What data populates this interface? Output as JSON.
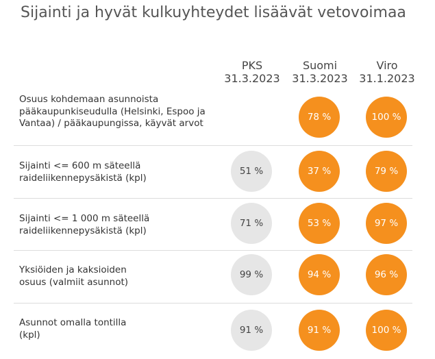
{
  "title": "Sijainti ja hyvät kulkuyhteydet lisäävät vetovoimaa",
  "columns": [
    {
      "name": "PKS",
      "date": "31.3.2023"
    },
    {
      "name": "Suomi",
      "date": "31.3.2023"
    },
    {
      "name": "Viro",
      "date": "31.1.2023"
    }
  ],
  "rows": [
    {
      "label_lines": [
        "Osuus kohdemaan asunnoista",
        "pääkaupunkiseudulla (Helsinki, Espoo ja",
        "Vantaa) / pääkaupungissa, käyvät arvot"
      ],
      "values": [
        "",
        "78 %",
        "100 %"
      ]
    },
    {
      "label_lines": [
        "Sijainti <= 600 m säteellä",
        "raideliikennepysäkistä (kpl)"
      ],
      "values": [
        "51 %",
        "37 %",
        "79 %"
      ]
    },
    {
      "label_lines": [
        "Sijainti <= 1 000 m säteellä",
        "raideliikennepysäkistä (kpl)"
      ],
      "values": [
        "71 %",
        "53 %",
        "97 %"
      ]
    },
    {
      "label_lines": [
        "Yksiöiden ja kaksioiden",
        "osuus (valmiit asunnot)"
      ],
      "values": [
        "99 %",
        "94 %",
        "96 %"
      ]
    },
    {
      "label_lines": [
        "Asunnot omalla tontilla",
        "(kpl)"
      ],
      "values": [
        "91 %",
        "91 %",
        "100 %"
      ]
    }
  ],
  "colors": {
    "pks": "#e6e6e6",
    "accent": "#f5901e"
  }
}
